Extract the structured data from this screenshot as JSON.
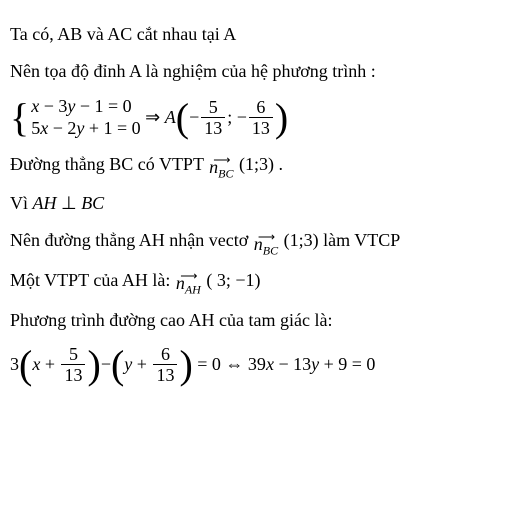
{
  "p1": "Ta có, AB và AC cắt nhau tại A",
  "p2": "Nên tọa độ đỉnh A là nghiệm của hệ phương trình :",
  "sys": {
    "eq1": "x − 3y − 1 = 0",
    "eq2": "5x − 2y + 1 = 0",
    "arrow": "⇒ A",
    "minus1": "−",
    "f1n": "5",
    "f1d": "13",
    "sep": "; −",
    "f2n": "6",
    "f2d": "13"
  },
  "p3a": "Đường thẳng BC có VTPT",
  "vec_bc_arrow": "⟶",
  "vec_bc": "n",
  "vec_bc_sub": "BC",
  "p3b": " (1;3) .",
  "p4a": " Vì  ",
  "p4b": "AH",
  "p4perp": "⊥",
  "p4c": "BC",
  "p5a": "Nên đường thẳng AH nhận vectơ",
  "p5b": " (1;3) làm VTCP",
  "p6a": "Một VTPT của AH là:",
  "vec_ah": "n",
  "vec_ah_sub": "AH",
  "p6b": "( 3; −1)",
  "p7": "Phương trình đường cao AH của tam giác là:",
  "final": {
    "c1": "3",
    "x": "x + ",
    "f1n": "5",
    "f1d": "13",
    "mid": " − ",
    "y": "y + ",
    "f2n": "6",
    "f2d": "13",
    "eq": " = 0 ⇔ 39x − 13y + 9 = 0"
  }
}
